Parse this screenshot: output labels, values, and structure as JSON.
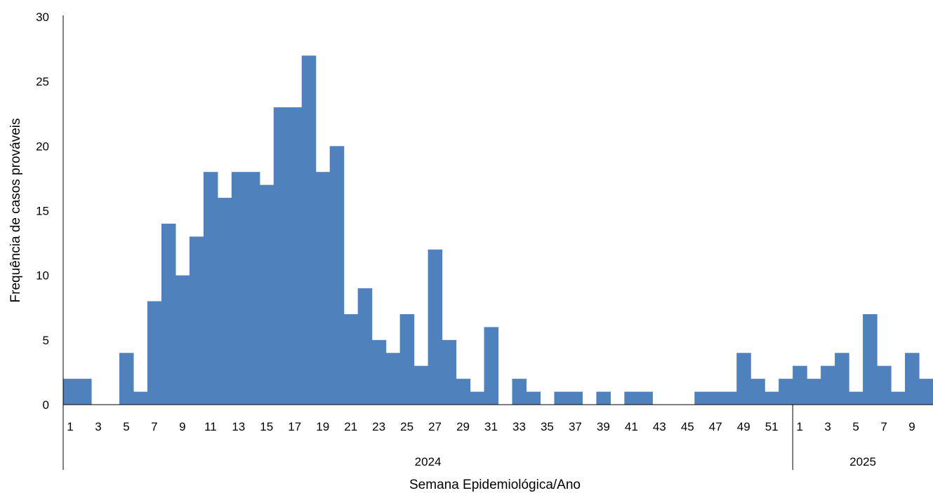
{
  "chart_data": {
    "type": "bar",
    "title": "",
    "xlabel": "Semana Epidemiológica/Ano",
    "ylabel": "Frequência de casos prováveis",
    "ylim": [
      0,
      30
    ],
    "yticks": [
      0,
      5,
      10,
      15,
      20,
      25,
      30
    ],
    "grid": false,
    "legend": "none",
    "bar_color": "#4F81BD",
    "groups": [
      {
        "year": "2024",
        "weeks": [
          1,
          2,
          3,
          4,
          5,
          6,
          7,
          8,
          9,
          10,
          11,
          12,
          13,
          14,
          15,
          16,
          17,
          18,
          19,
          20,
          21,
          22,
          23,
          24,
          25,
          26,
          27,
          28,
          29,
          30,
          31,
          32,
          33,
          34,
          35,
          36,
          37,
          38,
          39,
          40,
          41,
          42,
          43,
          44,
          45,
          46,
          47,
          48,
          49,
          50,
          51,
          52
        ],
        "values": [
          2,
          2,
          0,
          0,
          4,
          1,
          8,
          14,
          10,
          13,
          18,
          16,
          18,
          18,
          17,
          23,
          23,
          27,
          18,
          20,
          7,
          9,
          5,
          4,
          7,
          3,
          12,
          5,
          2,
          1,
          6,
          0,
          2,
          1,
          0,
          1,
          1,
          0,
          1,
          0,
          1,
          1,
          0,
          0,
          0,
          1,
          1,
          1,
          4,
          2,
          1,
          2
        ]
      },
      {
        "year": "2025",
        "weeks": [
          1,
          2,
          3,
          4,
          5,
          6,
          7,
          8,
          9,
          10
        ],
        "values": [
          3,
          2,
          3,
          4,
          1,
          7,
          3,
          1,
          4,
          2
        ]
      }
    ]
  }
}
